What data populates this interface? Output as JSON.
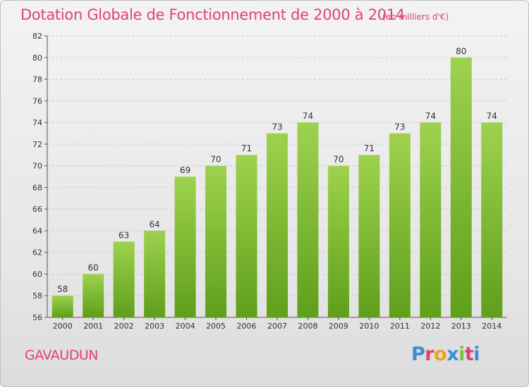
{
  "header": {
    "title": "Dotation Globale de Fonctionnement de 2000 à 2014",
    "subtitle": "(en milliers d'€)"
  },
  "footer": {
    "commune": "GAVAUDUN",
    "logo_text": "Proxiti",
    "logo_colors": [
      "#3a8fd6",
      "#e0407a",
      "#f0a020",
      "#3a8fd6",
      "#7bc142",
      "#e0407a",
      "#3a8fd6"
    ]
  },
  "colors": {
    "accent": "#e0407a",
    "bar_light": "#9ed24e",
    "bar_dark": "#5f9f1a"
  },
  "chart_data": {
    "type": "bar",
    "title": "Dotation Globale de Fonctionnement de 2000 à 2014",
    "subtitle": "(en milliers d'€)",
    "categories": [
      "2000",
      "2001",
      "2002",
      "2003",
      "2004",
      "2005",
      "2006",
      "2007",
      "2008",
      "2009",
      "2010",
      "2011",
      "2012",
      "2013",
      "2014"
    ],
    "values": [
      58,
      60,
      63,
      64,
      69,
      70,
      71,
      73,
      74,
      70,
      71,
      73,
      74,
      80,
      74
    ],
    "ylim": [
      56,
      82
    ],
    "yticks": [
      56,
      58,
      60,
      62,
      64,
      66,
      68,
      70,
      72,
      74,
      76,
      78,
      80,
      82
    ],
    "grid": true,
    "data_labels": true
  }
}
